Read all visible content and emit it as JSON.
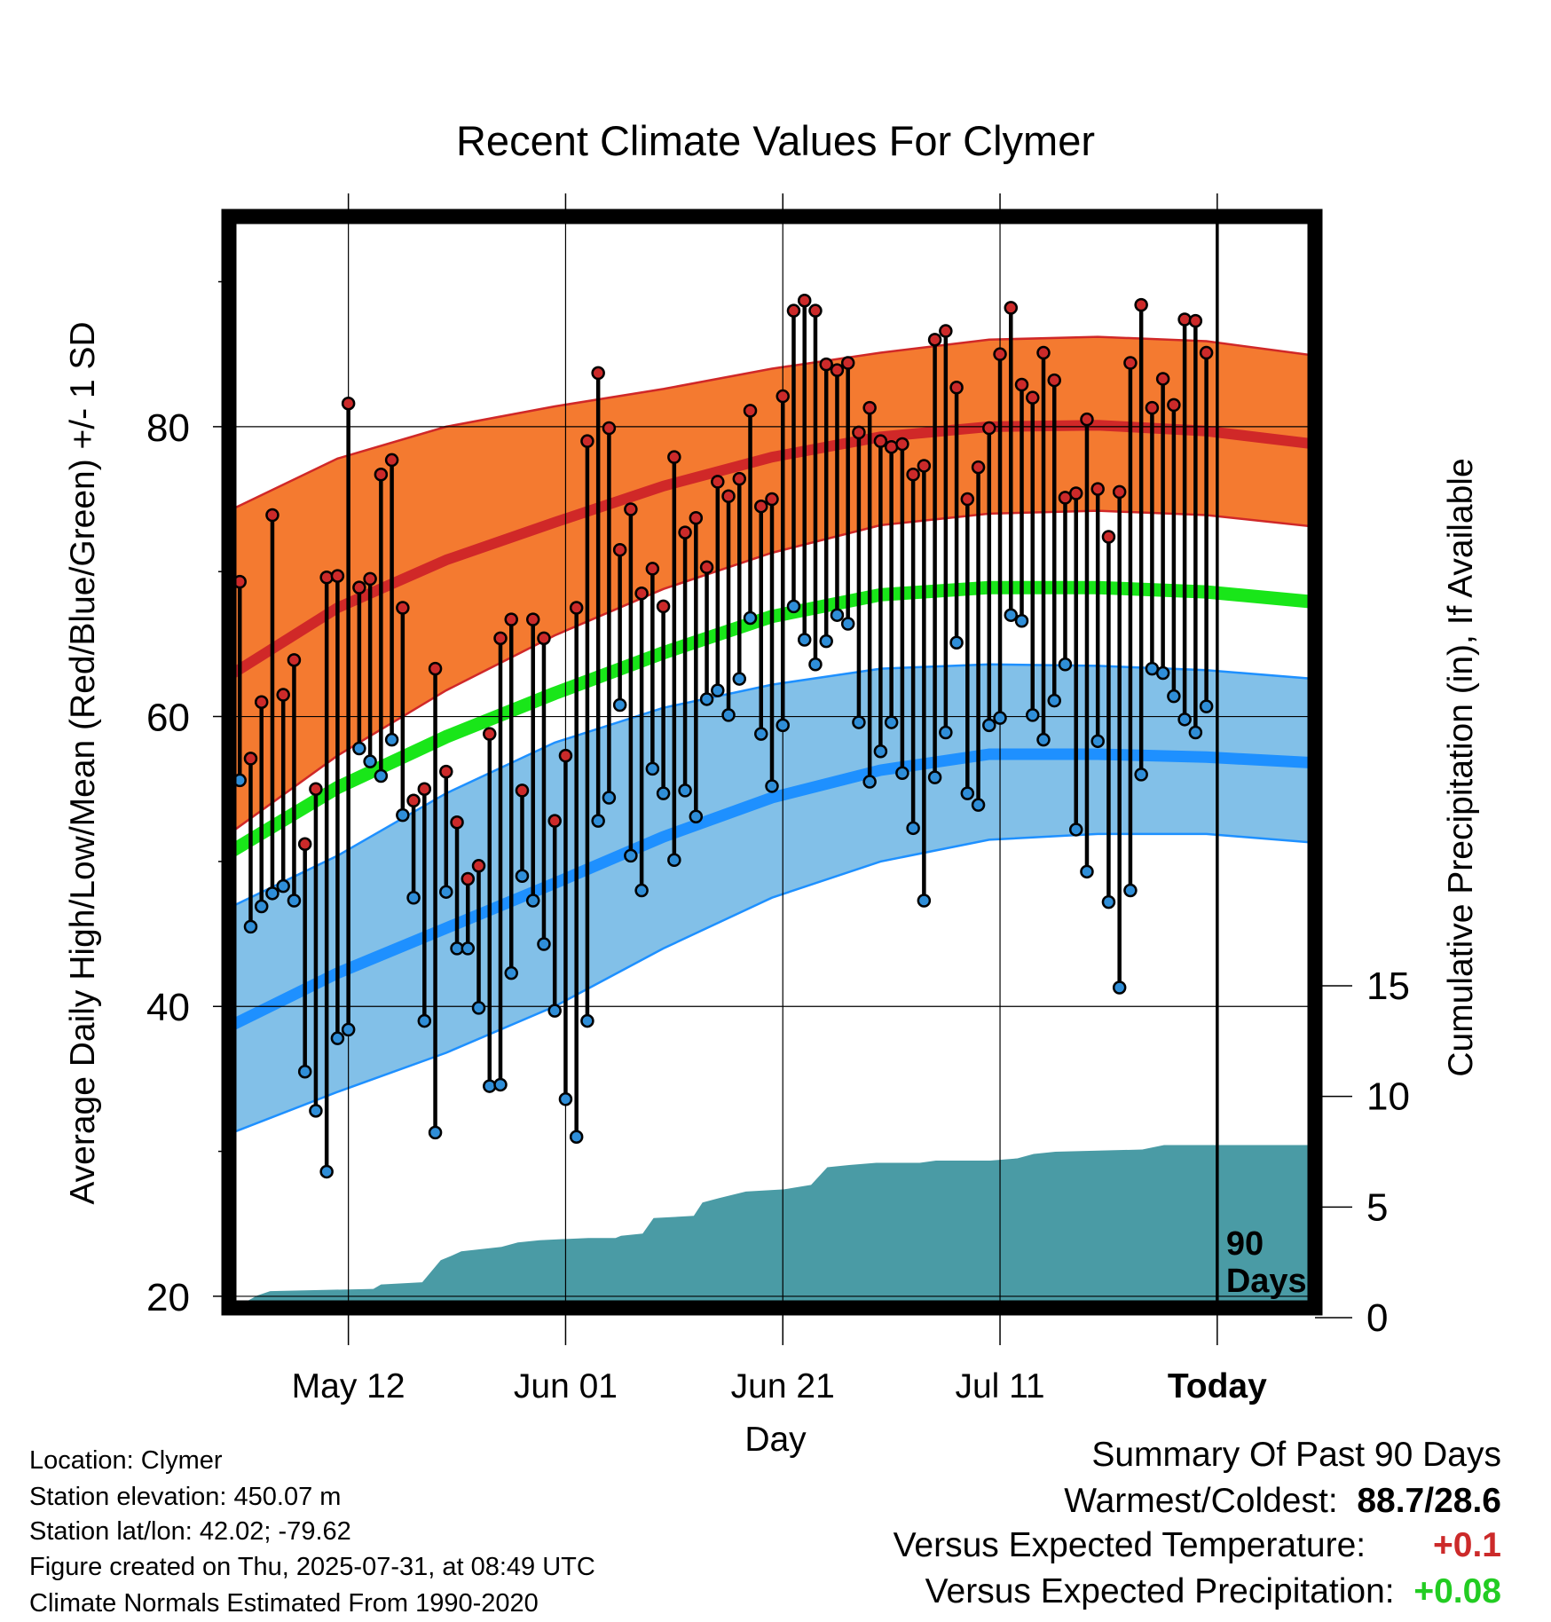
{
  "chart_data": {
    "type": "line",
    "title": "Recent Climate Values For Clymer",
    "xlabel": "Day",
    "ylabel": "Average Daily High/Low/Mean (Red/Blue/Green) +/- 1 SD",
    "y2label": "Cumulative Precipitation (in), If Available",
    "x_tick_labels": [
      "May 12",
      "Jun 01",
      "Jun 21",
      "Jul 11",
      "Today"
    ],
    "x_tick_days": [
      11,
      31,
      51,
      71,
      91
    ],
    "x_range_days": [
      0,
      100
    ],
    "ylim": [
      19.2,
      94.5
    ],
    "y_ticks": [
      20,
      40,
      60,
      80
    ],
    "y2lim": [
      0,
      15
    ],
    "y2_ticks": [
      0,
      5,
      10,
      15
    ],
    "today_marker_label": "90\nDays",
    "colors": {
      "high_band": "#f47a30",
      "high_mean": "#d02828",
      "low_band": "#82c0e8",
      "low_mean": "#1e90ff",
      "mean": "#19e619",
      "precip": "#4a9ba5",
      "high_dot": "#cc2a2a",
      "low_dot": "#2f8ed8"
    },
    "normals": {
      "days": [
        0,
        10,
        20,
        30,
        40,
        50,
        60,
        70,
        80,
        90,
        100
      ],
      "high_mean": [
        62.8,
        67.5,
        70.8,
        73.4,
        75.9,
        77.9,
        79.3,
        80.0,
        80.1,
        79.7,
        78.8
      ],
      "high_upper": [
        74.2,
        77.8,
        80.0,
        81.4,
        82.6,
        84.0,
        85.1,
        86.0,
        86.2,
        85.9,
        84.9
      ],
      "high_lower": [
        51.9,
        57.3,
        61.8,
        65.6,
        68.8,
        71.3,
        73.2,
        74.0,
        74.2,
        73.9,
        73.1
      ],
      "low_mean": [
        38.6,
        42.3,
        45.4,
        48.5,
        51.7,
        54.4,
        56.3,
        57.4,
        57.4,
        57.2,
        56.8
      ],
      "low_upper": [
        46.8,
        50.4,
        54.7,
        58.2,
        60.6,
        62.2,
        63.3,
        63.6,
        63.5,
        63.2,
        62.6
      ],
      "low_lower": [
        31.2,
        34.1,
        36.8,
        40.0,
        44.0,
        47.5,
        50.0,
        51.5,
        51.9,
        51.9,
        51.3
      ],
      "mean": [
        50.6,
        55.1,
        58.6,
        61.6,
        64.4,
        66.9,
        68.4,
        68.9,
        68.9,
        68.6,
        67.9
      ]
    },
    "highs": [
      69.3,
      57.1,
      61.0,
      73.9,
      61.5,
      63.9,
      51.2,
      55.0,
      69.6,
      69.7,
      81.6,
      68.9,
      69.5,
      76.7,
      77.7,
      67.5,
      54.2,
      55.0,
      63.3,
      56.2,
      52.7,
      48.8,
      49.7,
      58.8,
      65.4,
      66.7,
      54.9,
      66.7,
      65.4,
      52.8,
      57.3,
      67.5,
      79.0,
      83.7,
      79.9,
      71.5,
      74.3,
      68.5,
      70.2,
      67.6,
      77.9,
      72.7,
      73.7,
      70.3,
      76.2,
      75.2,
      76.4,
      81.1,
      74.5,
      75.0,
      82.1,
      88.0,
      88.7,
      88.0,
      84.3,
      83.9,
      84.4,
      79.6,
      81.3,
      79.0,
      78.6,
      78.8,
      76.7,
      77.3,
      86.0,
      86.6,
      82.7,
      75.0,
      77.2,
      79.9,
      85.0,
      88.2,
      82.9,
      82.0,
      85.1,
      83.2,
      75.1,
      75.4,
      80.5,
      75.7,
      72.4,
      75.5,
      84.4,
      88.4,
      81.3,
      83.3,
      81.5,
      87.4,
      87.3,
      85.1
    ],
    "lows": [
      55.6,
      45.5,
      46.9,
      47.8,
      48.3,
      47.3,
      35.5,
      32.8,
      28.6,
      37.8,
      38.4,
      57.8,
      56.9,
      55.9,
      58.4,
      53.2,
      47.5,
      39.0,
      31.3,
      47.9,
      44.0,
      44.0,
      39.9,
      34.5,
      34.6,
      42.3,
      49.0,
      47.3,
      44.3,
      39.7,
      33.6,
      31.0,
      39.0,
      52.8,
      54.4,
      60.8,
      50.4,
      48.0,
      56.4,
      54.7,
      50.1,
      54.9,
      53.1,
      61.2,
      61.8,
      60.1,
      62.6,
      66.8,
      58.8,
      55.2,
      59.4,
      67.6,
      65.3,
      63.6,
      65.2,
      67.0,
      66.4,
      59.6,
      55.5,
      57.6,
      59.6,
      56.1,
      52.3,
      47.3,
      55.8,
      58.9,
      65.1,
      54.7,
      53.9,
      59.4,
      59.9,
      67.0,
      66.6,
      60.1,
      58.4,
      61.1,
      63.6,
      52.2,
      49.3,
      58.3,
      47.2,
      41.3,
      48.0,
      56.0,
      63.3,
      63.0,
      61.4,
      59.8,
      58.9,
      60.7
    ],
    "precip_steps": [
      [
        0,
        0
      ],
      [
        0.6,
        0.6
      ],
      [
        1.5,
        0.7
      ],
      [
        2.6,
        1.0
      ],
      [
        3.8,
        1.2
      ],
      [
        13.3,
        1.3
      ],
      [
        14.0,
        1.5
      ],
      [
        17.8,
        1.6
      ],
      [
        19.5,
        2.6
      ],
      [
        20.5,
        2.8
      ],
      [
        21.4,
        3.0
      ],
      [
        25.1,
        3.2
      ],
      [
        26.6,
        3.4
      ],
      [
        28.6,
        3.5
      ],
      [
        33.1,
        3.6
      ],
      [
        35.6,
        3.6
      ],
      [
        36.1,
        3.7
      ],
      [
        38.1,
        3.8
      ],
      [
        39.1,
        4.5
      ],
      [
        42.8,
        4.6
      ],
      [
        43.6,
        5.2
      ],
      [
        45.1,
        5.4
      ],
      [
        47.6,
        5.7
      ],
      [
        51.1,
        5.8
      ],
      [
        53.6,
        6.0
      ],
      [
        55.1,
        6.8
      ],
      [
        57.1,
        6.9
      ],
      [
        59.6,
        7.0
      ],
      [
        63.6,
        7.0
      ],
      [
        65.1,
        7.1
      ],
      [
        70.1,
        7.1
      ],
      [
        72.6,
        7.2
      ],
      [
        74.1,
        7.4
      ],
      [
        76.1,
        7.5
      ],
      [
        84.1,
        7.6
      ],
      [
        85.1,
        7.7
      ],
      [
        86.1,
        7.8
      ],
      [
        100,
        7.8
      ]
    ]
  },
  "footer": {
    "location": "Location: Clymer",
    "elevation": "Station elevation: 450.07 m",
    "latlon": "Station lat/lon: 42.02; -79.62",
    "created": "Figure created on Thu, 2025-07-31, at 08:49 UTC",
    "normals": "Climate Normals Estimated From 1990-2020"
  },
  "summary": {
    "title": "Summary Of Past 90 Days",
    "warm_cold_label": "Warmest/Coldest:",
    "warm_cold_value": "88.7/28.6",
    "temp_label": "Versus Expected Temperature:",
    "temp_value": "+0.1",
    "temp_color": "#cc2a2a",
    "precip_label": "Versus Expected Precipitation:",
    "precip_value": "+0.08",
    "precip_color": "#22cc22"
  }
}
